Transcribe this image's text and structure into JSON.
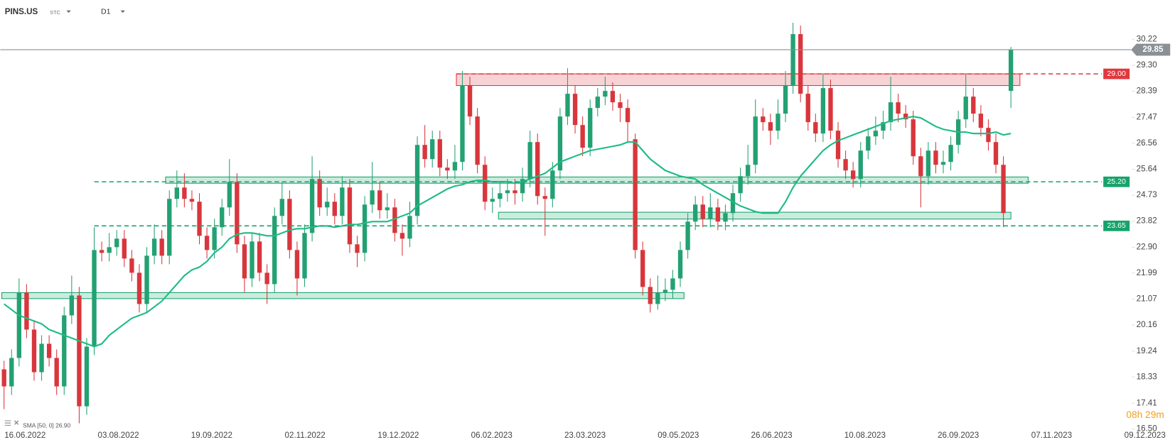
{
  "header": {
    "symbol": "PINS.US",
    "exchange": "STC",
    "interval": "D1"
  },
  "timer": "08h 29m",
  "chart_data": {
    "type": "candlestick",
    "x_labels": [
      "16.06.2022",
      "03.08.2022",
      "19.09.2022",
      "02.11.2022",
      "19.12.2022",
      "06.02.2023",
      "23.03.2023",
      "09.05.2023",
      "26.06.2023",
      "10.08.2023",
      "26.09.2023",
      "07.11.2023",
      "09.12.2023"
    ],
    "open": [
      18.6,
      18.0,
      19.0,
      21.3,
      20.0,
      18.5,
      19.5,
      19.0,
      18.0,
      20.5,
      21.2,
      17.3,
      19.4,
      22.8,
      22.7,
      22.9,
      23.2,
      22.5,
      22.0,
      20.9,
      22.6,
      23.2,
      22.6,
      24.6,
      25.0,
      24.6,
      24.5,
      23.3,
      22.8,
      23.6,
      24.3,
      25.2,
      23.0,
      21.8,
      23.1,
      22.0,
      21.6,
      24.0,
      24.6,
      22.8,
      21.8,
      23.4,
      25.3,
      24.3,
      24.5,
      24.0,
      25.0,
      23.0,
      22.7,
      24.4,
      24.9,
      24.2,
      24.3,
      23.4,
      23.2,
      24.0,
      26.5,
      26.0,
      26.7,
      25.7,
      25.6,
      25.9,
      28.6,
      27.5,
      25.8,
      24.5,
      24.6,
      24.8,
      24.9,
      24.8,
      25.3,
      26.6,
      24.7,
      24.6,
      25.6,
      27.5,
      28.3,
      27.2,
      26.4,
      27.8,
      28.2,
      28.4,
      28.0,
      27.8,
      26.7,
      22.8,
      21.5,
      20.9,
      21.3,
      21.4,
      21.8,
      22.8,
      23.8,
      24.4,
      23.9,
      24.3,
      23.8,
      24.1,
      24.8,
      25.4,
      25.8,
      27.5,
      27.3,
      27.0,
      27.6,
      28.6,
      30.4,
      28.3,
      27.3,
      26.9,
      28.5,
      27.0,
      26.0,
      25.6,
      25.3,
      26.3,
      26.8,
      27.0,
      27.3,
      28.0,
      27.6,
      27.4,
      26.1,
      25.4,
      26.3,
      25.8,
      25.9,
      26.5,
      27.4,
      28.2,
      27.6,
      27.1,
      26.6,
      25.8,
      28.4
    ],
    "high": [
      18.9,
      19.3,
      21.8,
      21.6,
      20.3,
      19.8,
      19.8,
      19.3,
      20.8,
      21.9,
      21.5,
      19.7,
      23.6,
      23.1,
      23.4,
      23.5,
      23.5,
      22.8,
      22.3,
      22.9,
      23.7,
      23.5,
      24.9,
      25.6,
      25.5,
      24.9,
      24.8,
      23.6,
      23.9,
      24.6,
      26.0,
      25.5,
      23.3,
      23.4,
      23.4,
      22.3,
      24.3,
      25.2,
      24.9,
      23.1,
      23.7,
      26.1,
      25.6,
      25.0,
      24.8,
      25.4,
      25.3,
      23.3,
      24.7,
      25.9,
      25.2,
      24.8,
      24.6,
      23.7,
      24.5,
      26.8,
      27.2,
      27.0,
      27.0,
      26.0,
      26.5,
      29.1,
      28.9,
      27.8,
      26.1,
      25.0,
      25.2,
      25.3,
      25.3,
      25.7,
      27.0,
      26.9,
      25.0,
      25.9,
      27.8,
      29.2,
      28.6,
      27.5,
      28.1,
      28.5,
      28.9,
      28.7,
      28.3,
      28.1,
      26.9,
      23.1,
      21.8,
      21.9,
      21.8,
      22.1,
      23.1,
      24.1,
      24.7,
      24.7,
      24.8,
      24.6,
      24.4,
      25.1,
      25.7,
      26.5,
      28.1,
      27.8,
      27.6,
      28.1,
      29.1,
      30.8,
      30.7,
      28.6,
      27.6,
      29.0,
      28.8,
      27.3,
      26.3,
      25.9,
      26.6,
      27.1,
      27.5,
      27.7,
      28.9,
      28.3,
      27.9,
      27.7,
      26.4,
      26.6,
      26.6,
      26.3,
      26.8,
      27.7,
      29.0,
      28.5,
      27.9,
      27.4,
      26.9,
      26.1,
      29.95
    ],
    "low": [
      17.2,
      17.7,
      18.7,
      19.7,
      18.2,
      18.2,
      18.7,
      17.7,
      17.7,
      20.2,
      16.7,
      17.0,
      19.1,
      22.4,
      22.4,
      22.6,
      22.2,
      21.7,
      20.6,
      20.6,
      22.3,
      22.3,
      22.3,
      24.3,
      24.3,
      24.2,
      23.0,
      22.5,
      22.5,
      23.3,
      24.0,
      22.7,
      21.3,
      21.5,
      21.7,
      20.9,
      21.3,
      23.7,
      22.5,
      21.2,
      21.5,
      23.1,
      24.0,
      24.0,
      23.7,
      23.7,
      22.7,
      22.2,
      22.4,
      24.1,
      23.9,
      23.9,
      23.1,
      22.6,
      22.9,
      23.7,
      25.7,
      25.7,
      25.4,
      25.3,
      25.3,
      25.6,
      27.2,
      25.5,
      24.2,
      24.1,
      24.3,
      24.5,
      24.4,
      24.5,
      25.0,
      24.4,
      23.3,
      24.3,
      25.3,
      27.2,
      26.9,
      26.1,
      26.1,
      27.5,
      27.9,
      27.7,
      27.3,
      26.6,
      22.5,
      21.2,
      20.6,
      20.7,
      21.0,
      21.1,
      21.5,
      22.5,
      23.5,
      23.6,
      23.6,
      23.5,
      23.5,
      23.8,
      24.5,
      25.1,
      25.5,
      27.0,
      26.5,
      26.7,
      27.3,
      28.3,
      28.0,
      27.0,
      26.6,
      26.6,
      26.7,
      25.7,
      25.3,
      25.0,
      25.0,
      26.0,
      26.5,
      26.7,
      27.0,
      27.3,
      27.1,
      25.8,
      24.3,
      25.1,
      25.5,
      25.5,
      25.6,
      26.2,
      27.1,
      27.3,
      26.8,
      26.3,
      25.5,
      23.6,
      27.8
    ],
    "close": [
      18.0,
      19.0,
      21.3,
      20.0,
      18.5,
      19.5,
      19.0,
      18.0,
      20.5,
      21.2,
      17.3,
      19.4,
      22.8,
      22.7,
      22.9,
      23.2,
      22.5,
      22.0,
      20.9,
      22.6,
      23.2,
      22.6,
      24.6,
      25.0,
      24.6,
      24.5,
      23.3,
      22.8,
      23.6,
      24.3,
      25.2,
      23.0,
      21.8,
      23.1,
      22.0,
      21.6,
      24.0,
      24.6,
      22.8,
      21.8,
      23.4,
      25.3,
      24.3,
      24.5,
      24.0,
      25.0,
      23.0,
      22.7,
      24.4,
      24.9,
      24.2,
      24.3,
      23.4,
      23.2,
      24.0,
      26.5,
      26.0,
      26.7,
      25.7,
      25.6,
      25.9,
      28.6,
      27.5,
      25.8,
      24.5,
      24.6,
      24.8,
      24.9,
      24.8,
      25.3,
      26.6,
      24.7,
      24.6,
      25.6,
      27.5,
      28.3,
      27.2,
      26.4,
      27.8,
      28.2,
      28.4,
      28.0,
      27.8,
      27.3,
      22.8,
      21.5,
      20.9,
      21.3,
      21.4,
      21.8,
      22.8,
      23.8,
      24.4,
      23.9,
      24.3,
      23.8,
      24.1,
      24.8,
      25.4,
      25.8,
      27.5,
      27.3,
      27.0,
      27.6,
      28.6,
      30.4,
      28.3,
      27.3,
      26.9,
      28.5,
      27.0,
      26.0,
      25.6,
      25.3,
      26.3,
      26.8,
      27.0,
      27.3,
      28.0,
      27.6,
      27.4,
      26.1,
      25.4,
      26.3,
      25.8,
      25.9,
      26.5,
      27.4,
      28.2,
      27.6,
      27.1,
      26.6,
      25.8,
      24.1,
      29.85
    ],
    "colors": {
      "up": "#23a173",
      "down": "#d8363c"
    },
    "ylim": [
      16.5,
      31.6
    ],
    "yticks": [
      30.22,
      {
        "value": 29.3,
        "label": "29.30"
      },
      28.39,
      27.47,
      26.56,
      25.64,
      24.73,
      23.82,
      {
        "value": 22.9,
        "label": "22.90"
      },
      21.99,
      21.07,
      20.16,
      19.24,
      18.33,
      17.41,
      {
        "value": 16.5,
        "label": "16.50"
      }
    ],
    "indicator": {
      "name": "SMA [50, 0] 26.90",
      "color": "#1dbb86",
      "values": [
        20.9,
        20.7,
        20.5,
        20.4,
        20.3,
        20.2,
        20.0,
        19.9,
        19.8,
        19.7,
        19.6,
        19.5,
        19.4,
        19.5,
        19.8,
        20.0,
        20.2,
        20.4,
        20.5,
        20.6,
        20.8,
        21.0,
        21.3,
        21.6,
        21.9,
        22.1,
        22.2,
        22.4,
        22.7,
        22.9,
        23.2,
        23.35,
        23.4,
        23.4,
        23.35,
        23.3,
        23.3,
        23.4,
        23.5,
        23.55,
        23.55,
        23.6,
        23.65,
        23.65,
        23.6,
        23.65,
        23.7,
        23.7,
        23.75,
        23.8,
        23.8,
        23.8,
        23.9,
        24.0,
        24.1,
        24.35,
        24.5,
        24.65,
        24.8,
        24.95,
        25.05,
        25.1,
        25.2,
        25.25,
        25.25,
        25.2,
        25.2,
        25.2,
        25.15,
        25.2,
        25.3,
        25.4,
        25.5,
        25.7,
        25.9,
        26.0,
        26.1,
        26.2,
        26.3,
        26.35,
        26.4,
        26.45,
        26.5,
        26.6,
        26.6,
        26.3,
        26.0,
        25.8,
        25.6,
        25.5,
        25.4,
        25.35,
        25.3,
        25.1,
        24.95,
        24.8,
        24.65,
        24.5,
        24.35,
        24.25,
        24.15,
        24.1,
        24.1,
        24.1,
        24.5,
        25.0,
        25.4,
        25.7,
        26.0,
        26.3,
        26.5,
        26.65,
        26.75,
        26.85,
        26.95,
        27.05,
        27.15,
        27.25,
        27.35,
        27.4,
        27.45,
        27.5,
        27.45,
        27.3,
        27.15,
        27.05,
        27.0,
        26.95,
        26.95,
        26.9,
        26.9,
        26.9,
        26.95,
        26.85,
        26.9
      ]
    },
    "levels": [
      {
        "value": 29,
        "label": "29.00",
        "color": "#e0383e"
      },
      {
        "value": 25.2,
        "label": "25.20",
        "color": "#17a36b"
      },
      {
        "value": 23.65,
        "label": "23.65",
        "color": "#17a36b"
      }
    ],
    "last_price": {
      "value": 29.85,
      "label": "29.85",
      "color": "#8a9095"
    },
    "zones": [
      {
        "ylim": [
          28.59,
          29.0
        ],
        "color": "#e0383e"
      },
      {
        "ylim": [
          25.15,
          25.37
        ],
        "color": "#17a36b"
      },
      {
        "ylim": [
          23.89,
          24.13
        ],
        "color": "#17a36b"
      },
      {
        "ylim": [
          21.09,
          21.3
        ],
        "color": "#17a36b"
      }
    ]
  }
}
